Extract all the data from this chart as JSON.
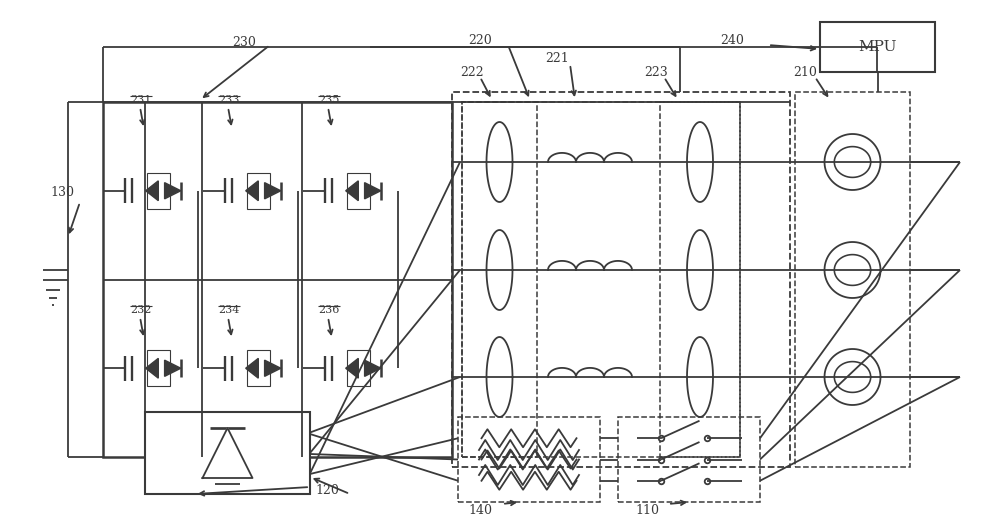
{
  "bg_color": "#ffffff",
  "lc": "#3a3a3a",
  "lw": 1.3,
  "fig_w": 10.0,
  "fig_h": 5.32,
  "dpi": 100
}
